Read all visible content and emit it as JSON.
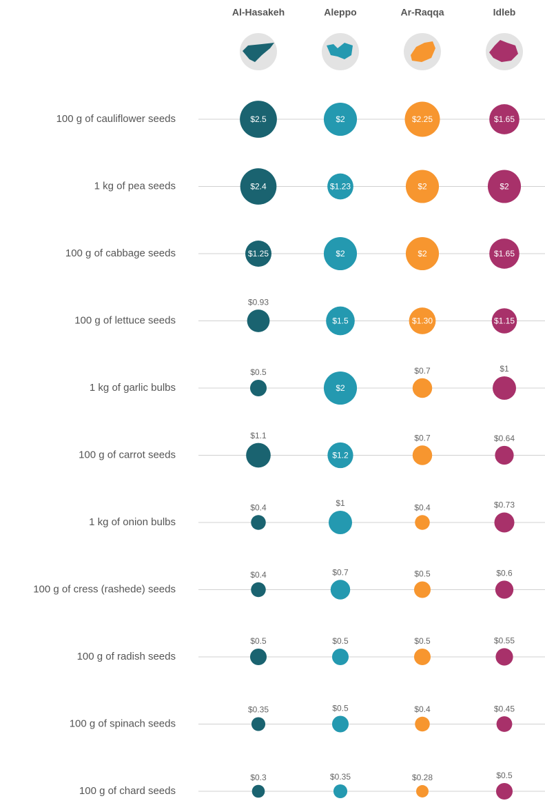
{
  "chart_data": {
    "type": "bubble-grid",
    "categories": [
      "100 g of cauliflower seeds",
      "1 kg of pea seeds",
      "100 g of cabbage seeds",
      "100 g of lettuce seeds",
      "1 kg of garlic bulbs",
      "100 g of carrot seeds",
      "1 kg of onion bulbs",
      "100 g of cress (rashede) seeds",
      "100 g of radish seeds",
      "100 g of spinach seeds",
      "100 g of chard seeds"
    ],
    "series": [
      {
        "name": "Al-Hasakeh",
        "color": "#1a6370",
        "values": [
          2.5,
          2.4,
          1.25,
          0.93,
          0.5,
          1.1,
          0.4,
          0.4,
          0.5,
          0.35,
          0.3
        ],
        "value_labels": [
          "$2.5",
          "$2.4",
          "$1.25",
          "$0.93",
          "$0.5",
          "$1.1",
          "$0.4",
          "$0.4",
          "$0.5",
          "$0.35",
          "$0.3"
        ]
      },
      {
        "name": "Aleppo",
        "color": "#2499b0",
        "values": [
          2,
          1.23,
          2,
          1.5,
          2,
          1.2,
          1,
          0.7,
          0.5,
          0.5,
          0.35
        ],
        "value_labels": [
          "$2",
          "$1.23",
          "$2",
          "$1.5",
          "$2",
          "$1.2",
          "$1",
          "$0.7",
          "$0.5",
          "$0.5",
          "$0.35"
        ]
      },
      {
        "name": "Ar-Raqqa",
        "color": "#f7962f",
        "values": [
          2.25,
          2,
          2,
          1.3,
          0.7,
          0.7,
          0.4,
          0.5,
          0.5,
          0.4,
          0.28
        ],
        "value_labels": [
          "$2.25",
          "$2",
          "$2",
          "$1.30",
          "$0.7",
          "$0.7",
          "$0.4",
          "$0.5",
          "$0.5",
          "$0.4",
          "$0.28"
        ]
      },
      {
        "name": "Idleb",
        "color": "#a8316a",
        "values": [
          1.65,
          2,
          1.65,
          1.15,
          1,
          0.64,
          0.73,
          0.6,
          0.55,
          0.45,
          0.5
        ],
        "value_labels": [
          "$1.65",
          "$2",
          "$1.65",
          "$1.15",
          "$1",
          "$0.64",
          "$0.73",
          "$0.6",
          "$0.55",
          "$0.45",
          "$0.5"
        ]
      }
    ]
  }
}
